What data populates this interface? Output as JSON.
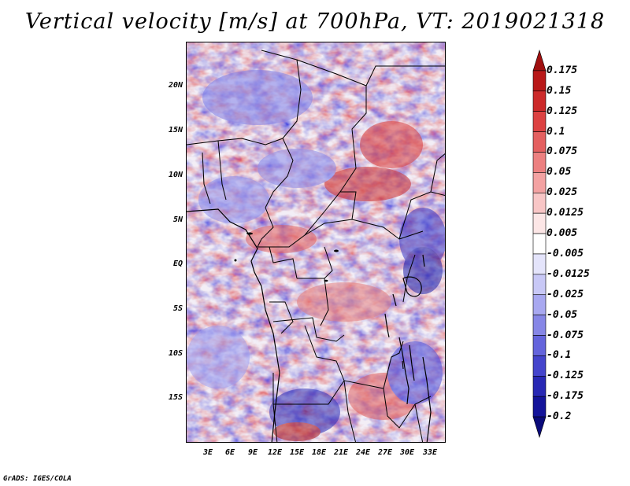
{
  "title": "Vertical velocity [m/s] at 700hPa, VT: 2019021318",
  "credit": "GrADS: IGES/COLA",
  "lat_labels": [
    "20N",
    "15N",
    "10N",
    "5N",
    "EQ",
    "5S",
    "10S",
    "15S"
  ],
  "lon_labels": [
    "3E",
    "6E",
    "9E",
    "12E",
    "15E",
    "18E",
    "21E",
    "24E",
    "27E",
    "30E",
    "33E"
  ],
  "colorbar": {
    "labels": [
      "0.175",
      "0.15",
      "0.125",
      "0.1",
      "0.075",
      "0.05",
      "0.025",
      "0.0125",
      "0.005",
      "-0.005",
      "-0.0125",
      "-0.025",
      "-0.05",
      "-0.075",
      "-0.1",
      "-0.125",
      "-0.175",
      "-0.2"
    ],
    "colors": [
      "#a01010",
      "#b81818",
      "#cc2a2a",
      "#dc4242",
      "#e46060",
      "#ec8080",
      "#f3a2a2",
      "#f8c6c6",
      "#fce6e6",
      "#ffffff",
      "#e4e4fb",
      "#c8c8f6",
      "#a8a8f0",
      "#8686e6",
      "#6464dc",
      "#4444cc",
      "#2828b4",
      "#14149a",
      "#0a0a7a"
    ]
  }
}
